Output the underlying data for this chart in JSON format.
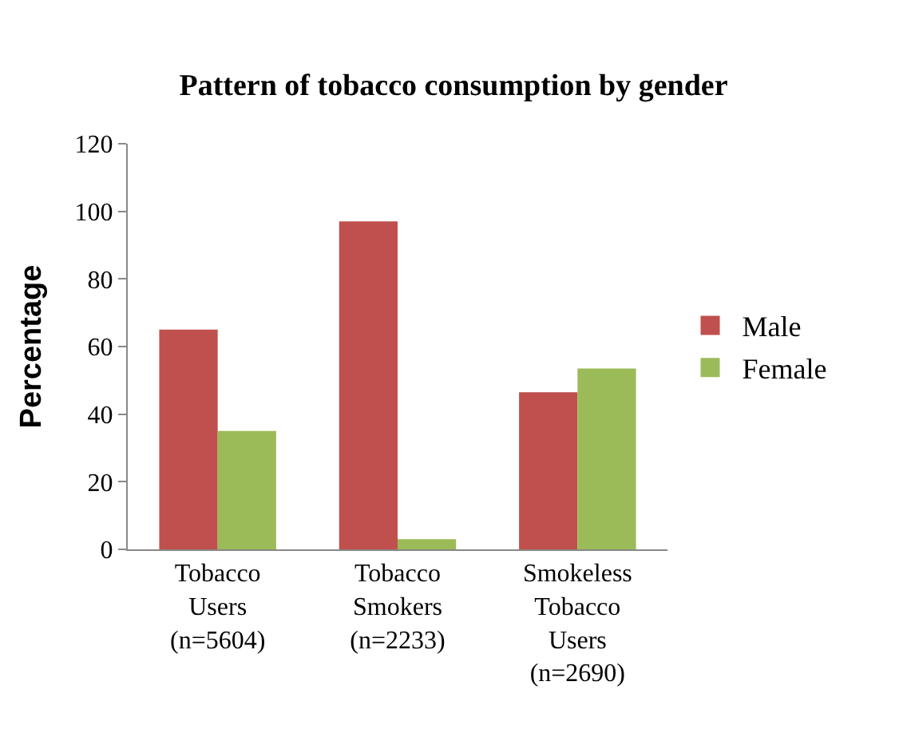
{
  "chart_data": {
    "type": "bar",
    "title": "Pattern of tobacco consumption by gender",
    "ylabel": "Percentage",
    "categories": [
      "Tobacco\nUsers\n(n=5604)",
      "Tobacco\nSmokers\n(n=2233)",
      "Smokeless\nTobacco\nUsers\n(n=2690)"
    ],
    "series": [
      {
        "name": "Male",
        "color": "#c0504d",
        "values": [
          65,
          97,
          46.5
        ]
      },
      {
        "name": "Female",
        "color": "#9bbb59",
        "values": [
          35,
          3,
          53.5
        ]
      }
    ],
    "ylim": [
      0,
      120
    ],
    "yticks": [
      0,
      20,
      40,
      60,
      80,
      100,
      120
    ],
    "grid": false,
    "legend": "right"
  }
}
